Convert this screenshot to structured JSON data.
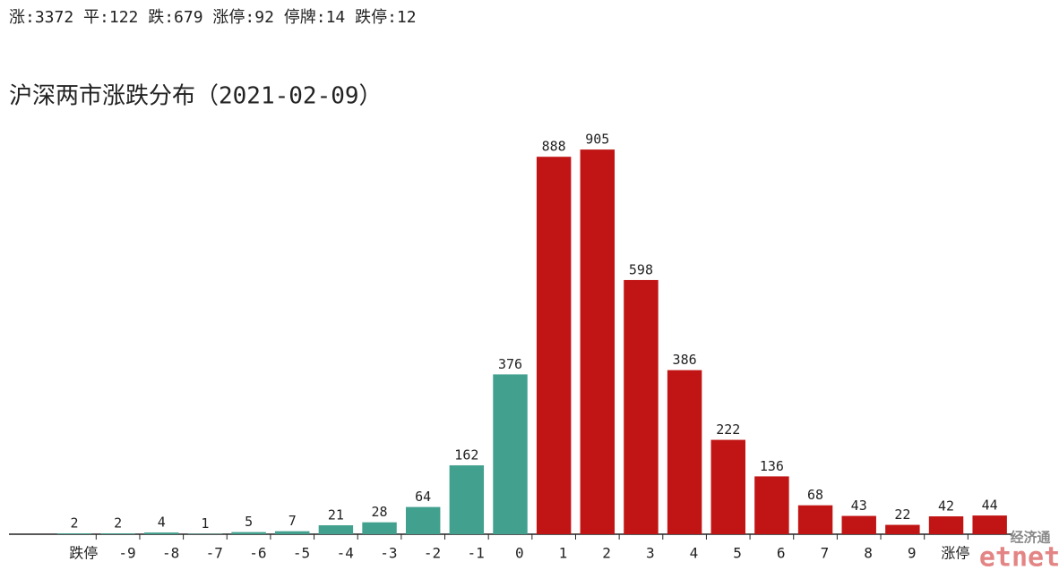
{
  "chart_data": {
    "type": "bar",
    "summary": "涨:3372 平:122 跌:679 涨停:92 停牌:14 跌停:12",
    "title": "沪深两市涨跌分布（2021-02-09）",
    "x": [
      -10.5,
      -9.5,
      -8.5,
      -7.5,
      -6.5,
      -5.5,
      -4.5,
      -3.5,
      -2.5,
      -1.5,
      -0.5,
      0.5,
      1.5,
      2.5,
      3.5,
      4.5,
      5.5,
      6.5,
      7.5,
      8.5,
      9.5,
      10.5
    ],
    "values": [
      2,
      2,
      4,
      1,
      5,
      7,
      21,
      28,
      64,
      162,
      376,
      888,
      905,
      598,
      386,
      222,
      136,
      68,
      43,
      22,
      42,
      44
    ],
    "bar_colors": [
      "#42a08e",
      "#42a08e",
      "#42a08e",
      "#42a08e",
      "#42a08e",
      "#42a08e",
      "#42a08e",
      "#42a08e",
      "#42a08e",
      "#42a08e",
      "#42a08e",
      "#c11414",
      "#c11414",
      "#c11414",
      "#c11414",
      "#c11414",
      "#c11414",
      "#c11414",
      "#c11414",
      "#c11414",
      "#c11414",
      "#c11414"
    ],
    "xlim": [
      -12,
      11
    ],
    "xticks": [
      {
        "value": -10,
        "label": "跌停"
      },
      -9,
      -8,
      -7,
      -6,
      -5,
      -4,
      -3,
      -2,
      -1,
      0,
      1,
      2,
      3,
      4,
      5,
      6,
      7,
      8,
      9,
      {
        "value": 10,
        "label": "涨停"
      }
    ],
    "ylim": [
      0,
      1000
    ],
    "watermark": {
      "cn": "经济通",
      "en": "etnet"
    }
  }
}
